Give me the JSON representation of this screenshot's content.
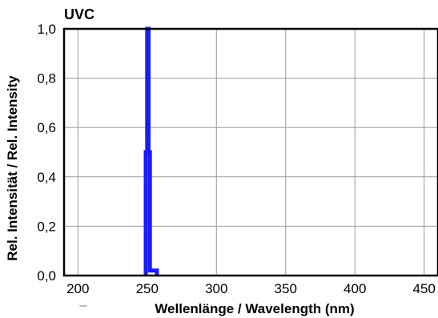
{
  "chart_data": {
    "type": "line",
    "title": "UVC",
    "xlabel": "Wellenlänge / Wavelength (nm)",
    "ylabel": "Rel. Intensität / Rel. Intensity",
    "xlim": [
      190,
      460
    ],
    "ylim": [
      0,
      1.0
    ],
    "x_ticks": [
      200,
      250,
      300,
      350,
      400,
      450
    ],
    "y_ticks": [
      0.0,
      0.2,
      0.4,
      0.6,
      0.8,
      1.0
    ],
    "x_tick_labels": [
      "200",
      "250",
      "300",
      "350",
      "400",
      "450"
    ],
    "y_tick_labels": [
      "0,0",
      "0,2",
      "0,4",
      "0,6",
      "0,8",
      "1,0"
    ],
    "grid": true,
    "series": [
      {
        "color": "#1a1aff",
        "x": [
          249,
          249,
          250,
          250,
          251,
          251,
          252,
          252,
          253,
          253,
          257,
          257
        ],
        "y": [
          0.0,
          0.5,
          0.5,
          1.0,
          1.0,
          0.5,
          0.5,
          0.02,
          0.02,
          0.02,
          0.02,
          0.0
        ]
      }
    ],
    "x_axis_marker": "–"
  }
}
